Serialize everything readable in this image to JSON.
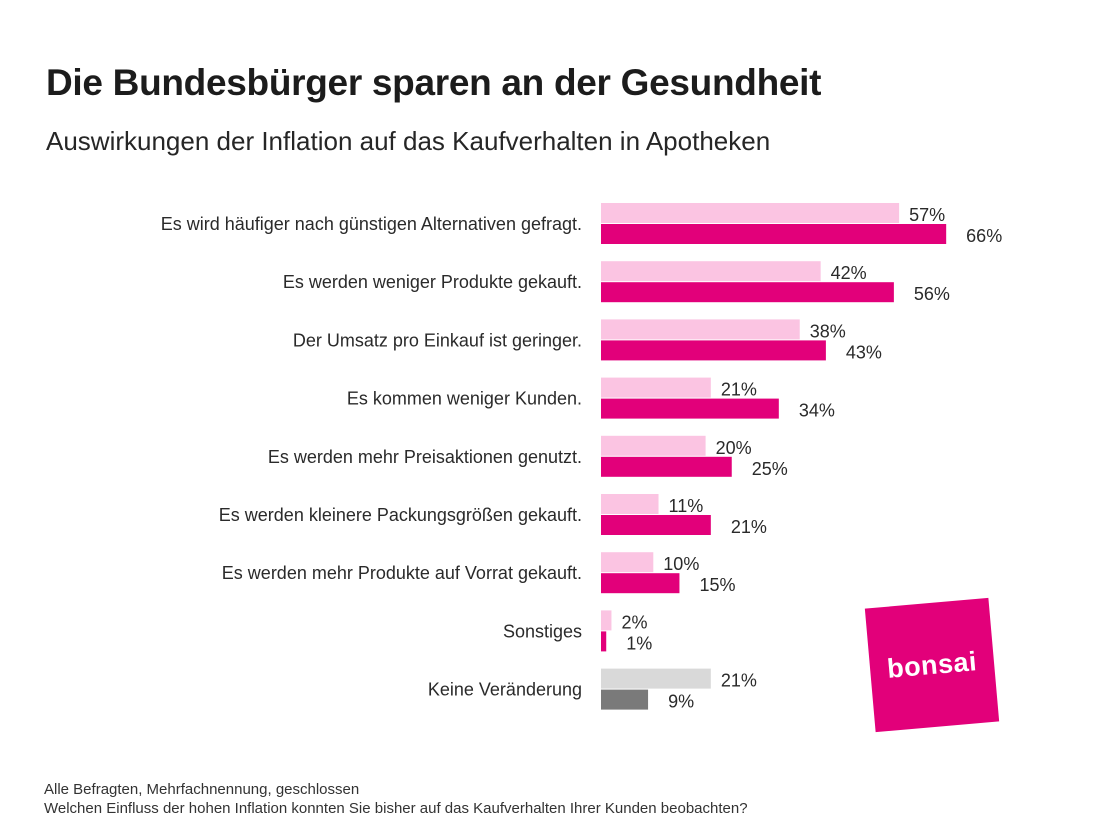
{
  "chart_data": {
    "type": "bar",
    "orientation": "horizontal",
    "title": "Die Bundesbürger sparen an der Gesundheit",
    "subtitle": "Auswirkungen der Inflation auf das Kaufverhalten in Apotheken",
    "xlabel": "",
    "ylabel": "",
    "xlim": [
      0,
      70
    ],
    "grid": false,
    "value_suffix": "%",
    "categories": [
      "Es wird häufiger nach günstigen Alternativen gefragt.",
      "Es werden weniger Produkte gekauft.",
      "Der Umsatz pro Einkauf ist geringer.",
      "Es kommen weniger Kunden.",
      "Es werden mehr Preisaktionen genutzt.",
      "Es werden kleinere Packungsgrößen gekauft.",
      "Es werden mehr Produkte auf Vorrat gekauft.",
      "Sonstiges",
      "Keine Veränderung"
    ],
    "series": [
      {
        "name": "series-1 (light)",
        "values": [
          57,
          42,
          38,
          21,
          20,
          11,
          10,
          2,
          21
        ],
        "color": "#fbc4e2",
        "highlight_color_last": "#d9d9d9"
      },
      {
        "name": "series-2 (dark)",
        "values": [
          66,
          56,
          43,
          34,
          25,
          21,
          15,
          1,
          9
        ],
        "color": "#e2007a",
        "highlight_color_last": "#7a7a7a"
      }
    ]
  },
  "logo": {
    "text": "bonsai",
    "color": "#e2007a"
  },
  "footnote": {
    "line1": "Alle Befragten, Mehrfachnennung, geschlossen",
    "line2": "Welchen Einfluss der hohen Inflation konnten Sie bisher auf das Kaufverhalten Ihrer Kunden beobachten?"
  }
}
